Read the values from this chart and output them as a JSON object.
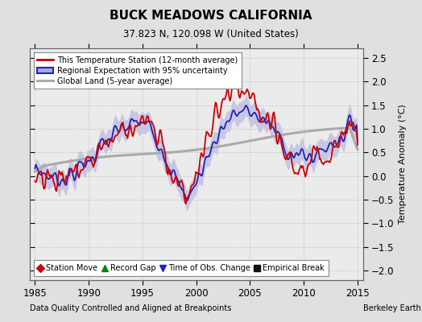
{
  "title": "BUCK MEADOWS CALIFORNIA",
  "subtitle": "37.823 N, 120.098 W (United States)",
  "ylabel": "Temperature Anomaly (°C)",
  "xlabel_left": "Data Quality Controlled and Aligned at Breakpoints",
  "xlabel_right": "Berkeley Earth",
  "xlim": [
    1984.5,
    2015.5
  ],
  "ylim": [
    -2.2,
    2.7
  ],
  "yticks": [
    -2,
    -1.5,
    -1,
    -0.5,
    0,
    0.5,
    1,
    1.5,
    2,
    2.5
  ],
  "xticks": [
    1985,
    1990,
    1995,
    2000,
    2005,
    2010,
    2015
  ],
  "bg_color": "#e0e0e0",
  "plot_bg_color": "#ebebeb",
  "grid_color": "#cccccc",
  "station_line_color": "#cc0000",
  "regional_line_color": "#2222bb",
  "regional_fill_color": "#aaaadd",
  "global_line_color": "#aaaaaa",
  "legend_labels": [
    "This Temperature Station (12-month average)",
    "Regional Expectation with 95% uncertainty",
    "Global Land (5-year average)"
  ],
  "marker_legend": [
    {
      "label": "Station Move",
      "color": "#cc0000",
      "marker": "D"
    },
    {
      "label": "Record Gap",
      "color": "#008800",
      "marker": "^"
    },
    {
      "label": "Time of Obs. Change",
      "color": "#2222bb",
      "marker": "v"
    },
    {
      "label": "Empirical Break",
      "color": "#111111",
      "marker": "s"
    }
  ]
}
